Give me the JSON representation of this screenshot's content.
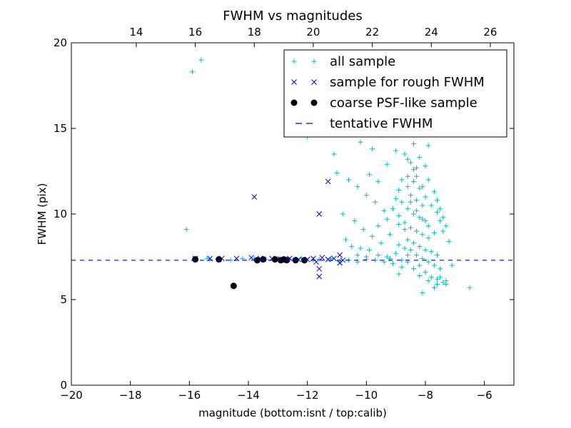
{
  "chart_data": {
    "type": "scatter",
    "title": "FWHM vs magnitudes",
    "xlabel": "magnitude (bottom:isnt / top:calib)",
    "ylabel": "FWHM (pix)",
    "xlim": [
      -20,
      -5
    ],
    "ylim": [
      0,
      20
    ],
    "xticks": [
      -20,
      -18,
      -16,
      -14,
      -12,
      -10,
      -8,
      -6
    ],
    "yticks": [
      0,
      5,
      10,
      15,
      20
    ],
    "top_axis": {
      "offset": 31.8,
      "ticks": [
        14,
        16,
        18,
        20,
        22,
        24,
        26
      ]
    },
    "legend_position": "top-right",
    "tentative_fwhm": 7.3,
    "colors": {
      "all_sample": "#00bfbf",
      "rough": "#0000ff",
      "coarse": "#000000",
      "tentative": "#0000ff"
    },
    "series": [
      {
        "name": "all sample",
        "marker": "plus",
        "points": [
          [
            -16.1,
            9.1
          ],
          [
            -15.9,
            18.3
          ],
          [
            -15.6,
            19.0
          ],
          [
            -15.8,
            7.4
          ],
          [
            -15.4,
            7.4
          ],
          [
            -15.0,
            7.4
          ],
          [
            -14.6,
            7.3
          ],
          [
            -14.2,
            7.4
          ],
          [
            -13.8,
            7.4
          ],
          [
            -13.4,
            7.35
          ],
          [
            -13.0,
            7.4
          ],
          [
            -12.6,
            7.35
          ],
          [
            -12.2,
            7.4
          ],
          [
            -11.8,
            7.3
          ],
          [
            -11.6,
            7.35
          ],
          [
            -11.2,
            7.4
          ],
          [
            -10.9,
            7.2
          ],
          [
            -10.6,
            7.3
          ],
          [
            -10.3,
            7.2
          ],
          [
            -10.0,
            7.35
          ],
          [
            -12.0,
            14.5
          ],
          [
            -11.1,
            13.5
          ],
          [
            -10.5,
            14.8
          ],
          [
            -10.2,
            14.2
          ],
          [
            -9.8,
            13.8
          ],
          [
            -9.5,
            14.6
          ],
          [
            -9.3,
            12.9
          ],
          [
            -9.0,
            13.7
          ],
          [
            -8.8,
            14.8
          ],
          [
            -8.4,
            14.1
          ],
          [
            -7.9,
            14.0
          ],
          [
            -8.6,
            13.2
          ],
          [
            -11.0,
            12.4
          ],
          [
            -10.6,
            12.0
          ],
          [
            -10.3,
            11.6
          ],
          [
            -10.0,
            11.1
          ],
          [
            -9.7,
            10.7
          ],
          [
            -9.4,
            10.2
          ],
          [
            -10.8,
            10.0
          ],
          [
            -10.4,
            9.6
          ],
          [
            -10.1,
            9.1
          ],
          [
            -9.8,
            8.7
          ],
          [
            -9.5,
            8.3
          ],
          [
            -9.2,
            8.8
          ],
          [
            -8.9,
            9.4
          ],
          [
            -9.6,
            11.9
          ],
          [
            -9.9,
            12.3
          ],
          [
            -10.7,
            8.5
          ],
          [
            -10.2,
            8.0
          ],
          [
            -9.9,
            7.9
          ],
          [
            -9.6,
            7.6
          ],
          [
            -9.3,
            7.5
          ],
          [
            -9.1,
            7.1
          ],
          [
            -8.8,
            6.9
          ],
          [
            -8.6,
            7.6
          ],
          [
            -8.7,
            13.5
          ],
          [
            -8.5,
            13.0
          ],
          [
            -8.3,
            12.7
          ],
          [
            -8.6,
            12.2
          ],
          [
            -8.4,
            11.9
          ],
          [
            -8.2,
            11.5
          ],
          [
            -8.5,
            11.1
          ],
          [
            -8.3,
            10.8
          ],
          [
            -8.1,
            10.5
          ],
          [
            -8.6,
            10.3
          ],
          [
            -8.4,
            10.0
          ],
          [
            -8.2,
            9.8
          ],
          [
            -8.0,
            9.6
          ],
          [
            -8.7,
            9.5
          ],
          [
            -8.5,
            9.2
          ],
          [
            -8.3,
            9.0
          ],
          [
            -8.1,
            8.8
          ],
          [
            -7.9,
            8.6
          ],
          [
            -8.6,
            8.5
          ],
          [
            -8.4,
            8.3
          ],
          [
            -8.2,
            8.1
          ],
          [
            -8.0,
            7.9
          ],
          [
            -7.8,
            7.8
          ],
          [
            -7.6,
            7.6
          ],
          [
            -8.5,
            7.9
          ],
          [
            -8.3,
            7.6
          ],
          [
            -8.1,
            7.4
          ],
          [
            -7.9,
            7.2
          ],
          [
            -7.7,
            7.0
          ],
          [
            -7.5,
            6.8
          ],
          [
            -8.2,
            7.0
          ],
          [
            -8.0,
            6.6
          ],
          [
            -7.8,
            6.3
          ],
          [
            -7.6,
            6.2
          ],
          [
            -7.4,
            6.0
          ],
          [
            -7.3,
            5.9
          ],
          [
            -7.5,
            6.3
          ],
          [
            -8.1,
            5.4
          ],
          [
            -7.7,
            5.7
          ],
          [
            -7.3,
            6.1
          ],
          [
            -6.5,
            5.7
          ],
          [
            -7.1,
            7.0
          ],
          [
            -7.2,
            8.4
          ],
          [
            -7.4,
            9.0
          ],
          [
            -7.5,
            9.6
          ],
          [
            -7.6,
            10.1
          ],
          [
            -7.8,
            10.5
          ],
          [
            -8.0,
            11.0
          ],
          [
            -8.1,
            11.6
          ],
          [
            -8.3,
            12.2
          ],
          [
            -8.8,
            12.0
          ],
          [
            -8.9,
            11.4
          ],
          [
            -9.0,
            10.9
          ],
          [
            -9.1,
            10.3
          ],
          [
            -8.9,
            9.9
          ],
          [
            -8.7,
            9.1
          ],
          [
            -8.9,
            8.2
          ],
          [
            -9.0,
            7.7
          ],
          [
            -9.2,
            7.4
          ],
          [
            -9.4,
            7.2
          ],
          [
            -9.7,
            7.3
          ],
          [
            -10.0,
            7.5
          ],
          [
            -10.3,
            7.6
          ],
          [
            -10.5,
            8.1
          ],
          [
            -9.6,
            9.3
          ],
          [
            -9.3,
            9.7
          ],
          [
            -8.8,
            10.7
          ],
          [
            -8.6,
            11.6
          ],
          [
            -8.4,
            12.6
          ],
          [
            -8.2,
            13.3
          ],
          [
            -8.0,
            12.8
          ],
          [
            -7.9,
            12.0
          ],
          [
            -7.7,
            11.3
          ],
          [
            -7.6,
            10.8
          ],
          [
            -7.5,
            10.3
          ],
          [
            -7.4,
            9.8
          ],
          [
            -7.3,
            9.3
          ],
          [
            -7.7,
            8.9
          ],
          [
            -7.9,
            9.3
          ],
          [
            -8.1,
            9.7
          ],
          [
            -8.3,
            10.2
          ],
          [
            -8.5,
            10.7
          ],
          [
            -8.7,
            8.0
          ],
          [
            -8.8,
            7.3
          ],
          [
            -8.4,
            6.8
          ],
          [
            -8.2,
            6.4
          ],
          [
            -7.9,
            6.1
          ],
          [
            -7.6,
            5.9
          ],
          [
            -8.9,
            6.5
          ],
          [
            -8.6,
            7.2
          ]
        ]
      },
      {
        "name": "sample for rough FWHM",
        "marker": "x",
        "points": [
          [
            -13.8,
            11.0
          ],
          [
            -11.3,
            11.9
          ],
          [
            -11.6,
            10.0
          ],
          [
            -11.6,
            6.35
          ],
          [
            -11.6,
            6.8
          ],
          [
            -15.8,
            7.4
          ],
          [
            -15.3,
            7.4
          ],
          [
            -14.9,
            7.4
          ],
          [
            -14.4,
            7.4
          ],
          [
            -13.9,
            7.45
          ],
          [
            -13.6,
            7.4
          ],
          [
            -13.2,
            7.4
          ],
          [
            -12.9,
            7.35
          ],
          [
            -12.6,
            7.4
          ],
          [
            -12.3,
            7.35
          ],
          [
            -12.0,
            7.35
          ],
          [
            -11.8,
            7.4
          ],
          [
            -11.5,
            7.45
          ],
          [
            -11.3,
            7.35
          ],
          [
            -11.1,
            7.4
          ],
          [
            -10.9,
            7.6
          ],
          [
            -10.8,
            7.3
          ],
          [
            -10.9,
            7.15
          ],
          [
            -11.7,
            7.2
          ]
        ]
      },
      {
        "name": "coarse PSF-like sample",
        "marker": "circle",
        "points": [
          [
            -15.8,
            7.35
          ],
          [
            -15.0,
            7.35
          ],
          [
            -14.5,
            5.8
          ],
          [
            -13.7,
            7.3
          ],
          [
            -13.5,
            7.35
          ],
          [
            -13.1,
            7.35
          ],
          [
            -12.9,
            7.3
          ],
          [
            -12.8,
            7.35
          ],
          [
            -12.7,
            7.3
          ],
          [
            -12.4,
            7.3
          ],
          [
            -12.1,
            7.3
          ]
        ]
      }
    ],
    "legend": [
      {
        "label": "all sample",
        "marker": "plus"
      },
      {
        "label": "sample for rough FWHM",
        "marker": "x"
      },
      {
        "label": "coarse PSF-like sample",
        "marker": "circle"
      },
      {
        "label": "tentative FWHM",
        "marker": "dash"
      }
    ]
  }
}
